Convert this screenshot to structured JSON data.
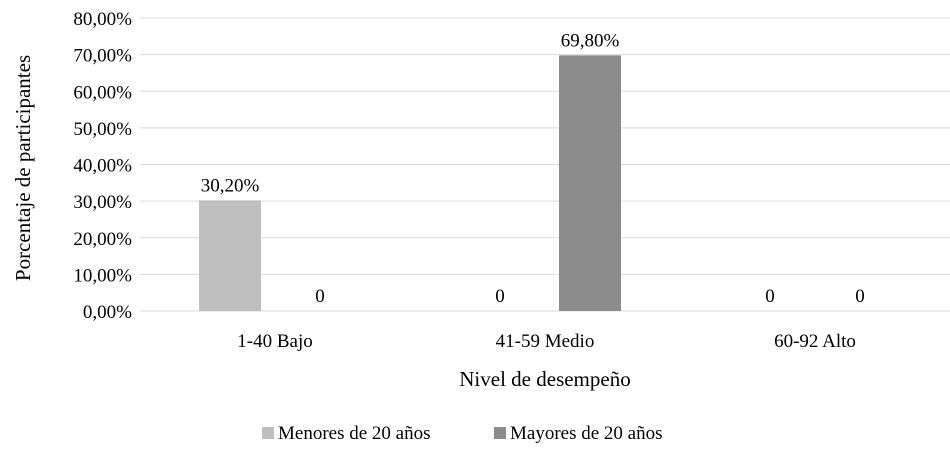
{
  "chart_data": {
    "type": "bar",
    "categories": [
      "1-40 Bajo",
      "41-59 Medio",
      "60-92 Alto"
    ],
    "series": [
      {
        "name": "Menores de 20 años",
        "values": [
          30.2,
          0,
          0
        ],
        "labels": [
          "30,20%",
          "0",
          "0"
        ],
        "color": "#bfbfbf"
      },
      {
        "name": "Mayores de 20 años",
        "values": [
          0,
          69.8,
          0
        ],
        "labels": [
          "0",
          "69,80%",
          "0"
        ],
        "color": "#8c8c8c"
      }
    ],
    "xlabel": "Nivel de desempeño",
    "ylabel": "Porcentaje de participantes",
    "ylim": [
      0,
      80
    ],
    "yticks": [
      0,
      10,
      20,
      30,
      40,
      50,
      60,
      70,
      80
    ],
    "ytick_labels": [
      "0,00%",
      "10,00%",
      "20,00%",
      "30,00%",
      "40,00%",
      "50,00%",
      "60,00%",
      "70,00%",
      "80,00%"
    ],
    "grid": true,
    "grid_color": "#d9d9d9",
    "legend_position": "bottom"
  }
}
